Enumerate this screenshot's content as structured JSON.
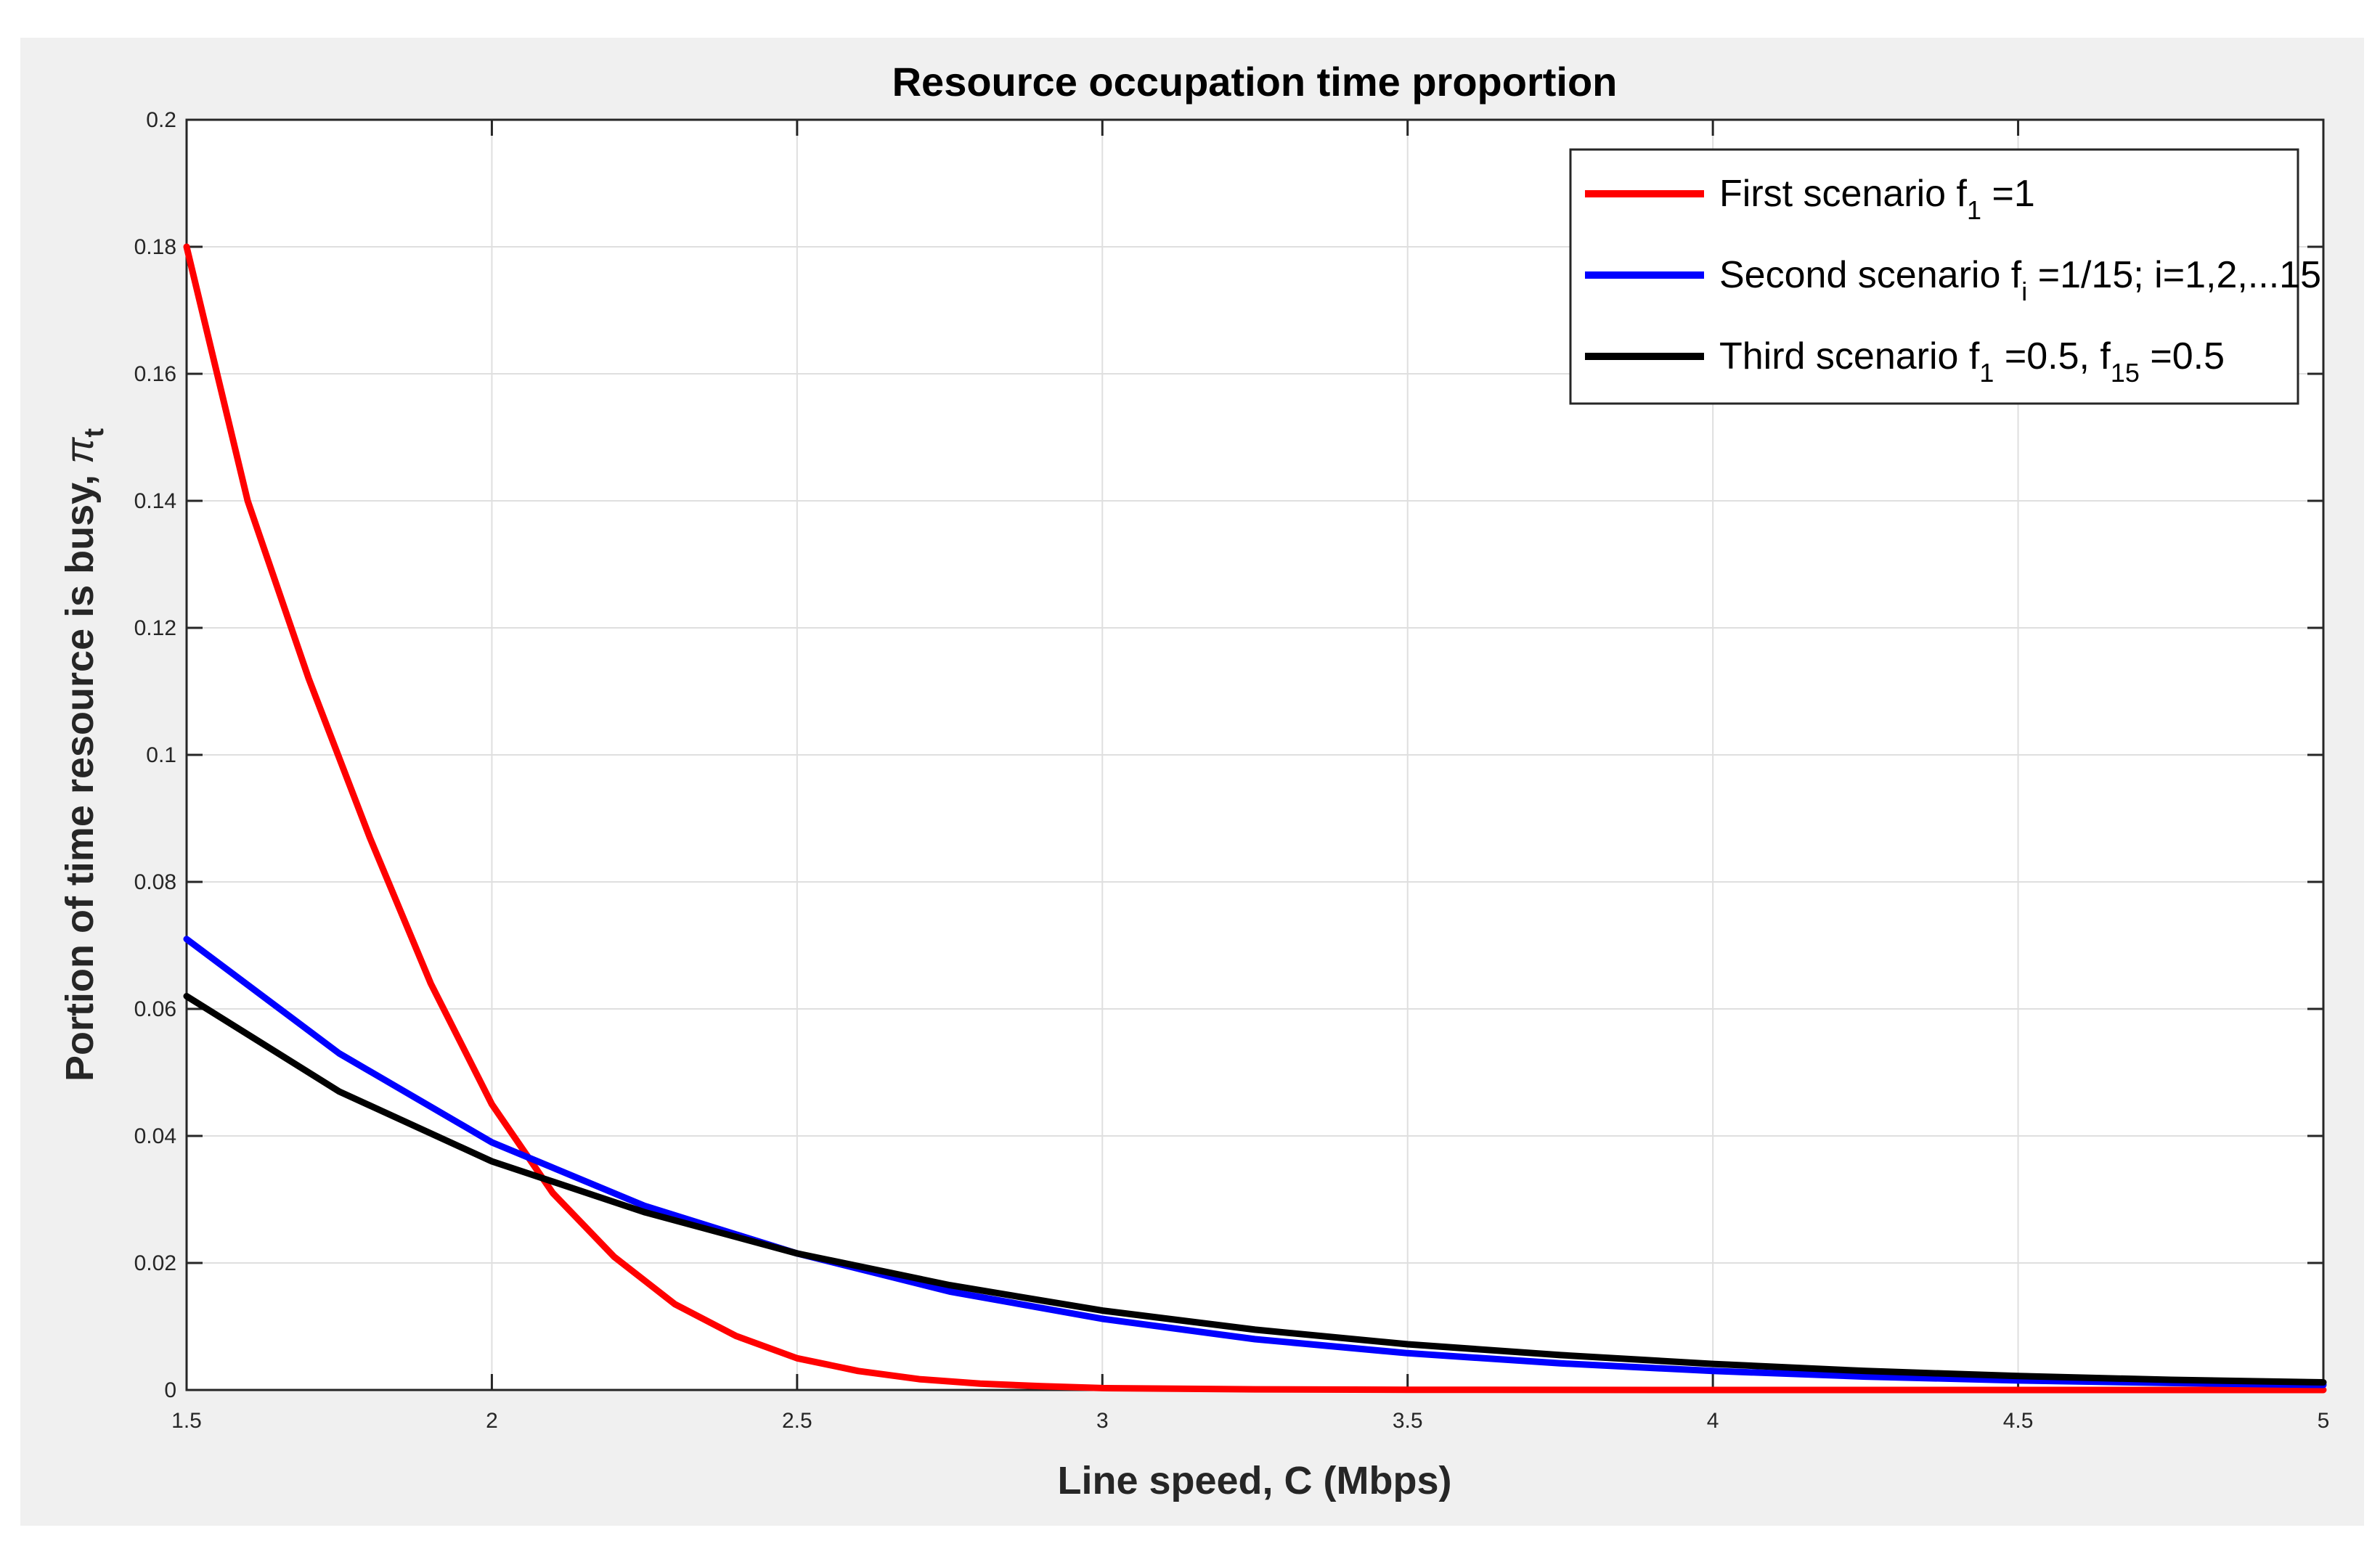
{
  "chart_data": {
    "type": "line",
    "title": "Resource occupation time proportion",
    "xlabel": "Line speed, C (Mbps)",
    "ylabel": "Portion of time resource is busy, ",
    "ylabel_symbol": "π",
    "ylabel_subscript": "t",
    "xlim": [
      1.5,
      5
    ],
    "ylim": [
      0,
      0.2
    ],
    "xticks": [
      1.5,
      2,
      2.5,
      3,
      3.5,
      4,
      4.5,
      5
    ],
    "xtick_labels": [
      "1.5",
      "2",
      "2.5",
      "3",
      "3.5",
      "4",
      "4.5",
      "5"
    ],
    "yticks": [
      0,
      0.02,
      0.04,
      0.06,
      0.08,
      0.1,
      0.12,
      0.14,
      0.16,
      0.18,
      0.2
    ],
    "ytick_labels": [
      "0",
      "0.02",
      "0.04",
      "0.06",
      "0.08",
      "0.1",
      "0.12",
      "0.14",
      "0.16",
      "0.18",
      "0.2"
    ],
    "grid": true,
    "legend_position": "top-right",
    "series": [
      {
        "name": "First scenario f1 =1",
        "legend_parts": [
          "First scenario f",
          "1",
          " =1",
          "",
          ""
        ],
        "color": "#ff0000",
        "x": [
          1.5,
          1.6,
          1.7,
          1.8,
          1.9,
          2.0,
          2.1,
          2.2,
          2.3,
          2.4,
          2.5,
          2.6,
          2.7,
          2.8,
          2.9,
          3.0,
          3.25,
          3.5,
          4.0,
          4.5,
          5.0
        ],
        "y": [
          0.18,
          0.14,
          0.112,
          0.087,
          0.064,
          0.045,
          0.031,
          0.021,
          0.0135,
          0.0085,
          0.005,
          0.003,
          0.0017,
          0.001,
          0.0006,
          0.0003,
          0.0001,
          3e-05,
          0.0,
          0.0,
          0.0
        ]
      },
      {
        "name": "Second scenario fi =1/15; i=1,2,...15",
        "legend_parts": [
          "Second scenario f",
          "i",
          " =1/15; i=1,2,...15",
          "",
          ""
        ],
        "color": "#0000ff",
        "x": [
          1.5,
          1.75,
          2.0,
          2.25,
          2.5,
          2.75,
          3.0,
          3.25,
          3.5,
          3.75,
          4.0,
          4.25,
          4.5,
          4.75,
          5.0
        ],
        "y": [
          0.071,
          0.053,
          0.039,
          0.029,
          0.0215,
          0.0155,
          0.0112,
          0.008,
          0.0058,
          0.0042,
          0.003,
          0.0021,
          0.0015,
          0.0011,
          0.0008
        ]
      },
      {
        "name": "Third scenario f1 =0.5, f15 =0.5",
        "legend_parts": [
          "Third scenario f",
          "1",
          " =0.5, f",
          "15",
          " =0.5"
        ],
        "color": "#000000",
        "x": [
          1.5,
          1.75,
          2.0,
          2.25,
          2.5,
          2.75,
          3.0,
          3.25,
          3.5,
          3.75,
          4.0,
          4.25,
          4.5,
          4.75,
          5.0
        ],
        "y": [
          0.062,
          0.047,
          0.036,
          0.028,
          0.0215,
          0.0165,
          0.0125,
          0.0095,
          0.0072,
          0.0055,
          0.0041,
          0.003,
          0.0022,
          0.0016,
          0.0012
        ]
      }
    ]
  }
}
